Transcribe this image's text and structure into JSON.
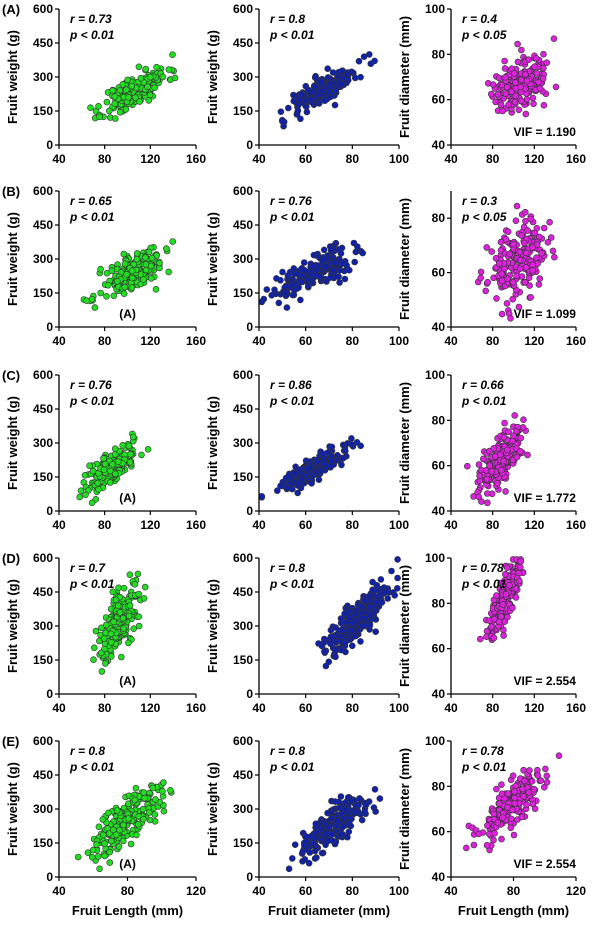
{
  "figure": {
    "row_labels": [
      "(A)",
      "(B)",
      "(C)",
      "(D)",
      "(E)"
    ],
    "bottom_xlabels": [
      "Fruit Length (mm)",
      "Fruit diameter (mm)",
      "Fruit Length (mm)"
    ],
    "colors": {
      "green": "#22dd22",
      "blue": "#1122aa",
      "magenta": "#dd22dd",
      "outline": "#333333"
    }
  },
  "chart_data": [
    {
      "type": "scatter",
      "row": "(A)",
      "col": 0,
      "color": "#22dd22",
      "ylabel": "Fruit weight (g)",
      "xlim": [
        40,
        160
      ],
      "xticks": [
        40,
        80,
        120,
        160
      ],
      "ylim": [
        0,
        600
      ],
      "yticks": [
        0,
        150,
        300,
        450,
        600
      ],
      "r": "r = 0.73",
      "p": "p < 0.01",
      "note": "",
      "cx": 107,
      "cy": 240,
      "sx": 14,
      "sy": 52,
      "rho": 0.73,
      "n": 200,
      "seed": 11
    },
    {
      "type": "scatter",
      "row": "(A)",
      "col": 1,
      "color": "#1122aa",
      "ylabel": "Fruit weight (g)",
      "xlim": [
        40,
        100
      ],
      "xticks": [
        40,
        60,
        80,
        100
      ],
      "ylim": [
        0,
        600
      ],
      "yticks": [
        0,
        150,
        300,
        450,
        600
      ],
      "r": "r = 0.8",
      "p": "p < 0.01",
      "note": "",
      "cx": 68,
      "cy": 245,
      "sx": 7,
      "sy": 52,
      "rho": 0.8,
      "n": 200,
      "seed": 12
    },
    {
      "type": "scatter",
      "row": "(A)",
      "col": 2,
      "color": "#dd22dd",
      "ylabel": "Fruit diameter (mm)",
      "xlim": [
        40,
        160
      ],
      "xticks": [
        40,
        80,
        120,
        160
      ],
      "ylim": [
        40,
        100
      ],
      "yticks": [
        40,
        60,
        80,
        100
      ],
      "r": "r = 0.4",
      "p": "p < 0.05",
      "note": "VIF = 1.190",
      "cx": 108,
      "cy": 67,
      "sx": 14,
      "sy": 6,
      "rho": 0.4,
      "n": 200,
      "seed": 13
    },
    {
      "type": "scatter",
      "row": "(B)",
      "col": 0,
      "color": "#22dd22",
      "ylabel": "Fruit weight (g)",
      "xlim": [
        40,
        160
      ],
      "xticks": [
        40,
        80,
        120,
        160
      ],
      "ylim": [
        0,
        600
      ],
      "yticks": [
        0,
        150,
        300,
        450,
        600
      ],
      "r": "r = 0.65",
      "p": "p < 0.01",
      "note": "(A)",
      "cx": 105,
      "cy": 240,
      "sx": 14,
      "sy": 52,
      "rho": 0.65,
      "n": 200,
      "seed": 21
    },
    {
      "type": "scatter",
      "row": "(B)",
      "col": 1,
      "color": "#1122aa",
      "ylabel": "Fruit weight (g)",
      "xlim": [
        40,
        100
      ],
      "xticks": [
        40,
        60,
        80,
        100
      ],
      "ylim": [
        0,
        600
      ],
      "yticks": [
        0,
        150,
        300,
        450,
        600
      ],
      "r": "r = 0.76",
      "p": "p < 0.01",
      "note": "",
      "cx": 64,
      "cy": 240,
      "sx": 8,
      "sy": 52,
      "rho": 0.76,
      "n": 200,
      "seed": 22
    },
    {
      "type": "scatter",
      "row": "(B)",
      "col": 2,
      "color": "#dd22dd",
      "ylabel": "Fruit diameter (mm)",
      "xlim": [
        40,
        160
      ],
      "xticks": [
        40,
        80,
        120,
        160
      ],
      "ylim": [
        40,
        90
      ],
      "yticks": [
        40,
        60,
        80
      ],
      "r": "r = 0.3",
      "p": "p < 0.05",
      "note": "VIF = 1.099",
      "cx": 104,
      "cy": 64,
      "sx": 14,
      "sy": 7,
      "rho": 0.3,
      "n": 200,
      "seed": 23
    },
    {
      "type": "scatter",
      "row": "(C)",
      "col": 0,
      "color": "#22dd22",
      "ylabel": "Fruit weight (g)",
      "xlim": [
        40,
        160
      ],
      "xticks": [
        40,
        80,
        120,
        160
      ],
      "ylim": [
        0,
        600
      ],
      "yticks": [
        0,
        150,
        300,
        450,
        600
      ],
      "r": "r = 0.76",
      "p": "p < 0.01",
      "note": "(A)",
      "cx": 85,
      "cy": 185,
      "sx": 12,
      "sy": 55,
      "rho": 0.76,
      "n": 200,
      "seed": 31
    },
    {
      "type": "scatter",
      "row": "(C)",
      "col": 1,
      "color": "#1122aa",
      "ylabel": "Fruit weight (g)",
      "xlim": [
        40,
        100
      ],
      "xticks": [
        40,
        60,
        80,
        100
      ],
      "ylim": [
        0,
        600
      ],
      "yticks": [
        0,
        150,
        300,
        450,
        600
      ],
      "r": "r = 0.86",
      "p": "p < 0.01",
      "note": "",
      "cx": 62,
      "cy": 180,
      "sx": 8,
      "sy": 50,
      "rho": 0.86,
      "n": 200,
      "seed": 32
    },
    {
      "type": "scatter",
      "row": "(C)",
      "col": 2,
      "color": "#dd22dd",
      "ylabel": "Fruit diameter (mm)",
      "xlim": [
        40,
        160
      ],
      "xticks": [
        40,
        80,
        120,
        160
      ],
      "ylim": [
        40,
        100
      ],
      "yticks": [
        40,
        60,
        80,
        100
      ],
      "r": "r = 0.66",
      "p": "p < 0.01",
      "note": "VIF = 1.772",
      "cx": 88,
      "cy": 63,
      "sx": 11,
      "sy": 7,
      "rho": 0.66,
      "n": 200,
      "seed": 33
    },
    {
      "type": "scatter",
      "row": "(D)",
      "col": 0,
      "color": "#22dd22",
      "ylabel": "Fruit weight (g)",
      "xlim": [
        40,
        160
      ],
      "xticks": [
        40,
        80,
        120,
        160
      ],
      "ylim": [
        0,
        600
      ],
      "yticks": [
        0,
        150,
        300,
        450,
        600
      ],
      "r": "r = 0.7",
      "p": "p < 0.01",
      "note": "(A)",
      "cx": 92,
      "cy": 320,
      "sx": 9,
      "sy": 85,
      "rho": 0.7,
      "n": 220,
      "seed": 41
    },
    {
      "type": "scatter",
      "row": "(D)",
      "col": 1,
      "color": "#1122aa",
      "ylabel": "Fruit weight (g)",
      "xlim": [
        40,
        100
      ],
      "xticks": [
        40,
        60,
        80,
        100
      ],
      "ylim": [
        0,
        600
      ],
      "yticks": [
        0,
        150,
        300,
        450,
        600
      ],
      "r": "r = 0.8",
      "p": "p < 0.01",
      "note": "",
      "cx": 82,
      "cy": 330,
      "sx": 7,
      "sy": 80,
      "rho": 0.8,
      "n": 220,
      "seed": 42
    },
    {
      "type": "scatter",
      "row": "(D)",
      "col": 2,
      "color": "#dd22dd",
      "ylabel": "Fruit diameter (mm)",
      "xlim": [
        40,
        160
      ],
      "xticks": [
        40,
        80,
        120,
        160
      ],
      "ylim": [
        40,
        100
      ],
      "yticks": [
        40,
        60,
        80,
        100
      ],
      "r": "r = 0.78",
      "p": "p < 0.01",
      "note": "VIF = 2.554",
      "cx": 92,
      "cy": 83,
      "sx": 8,
      "sy": 8,
      "rho": 0.78,
      "n": 220,
      "seed": 43
    },
    {
      "type": "scatter",
      "row": "(E)",
      "col": 0,
      "color": "#22dd22",
      "ylabel": "Fruit weight (g)",
      "xlim": [
        40,
        120
      ],
      "xticks": [
        40,
        80,
        120
      ],
      "ylim": [
        0,
        600
      ],
      "yticks": [
        0,
        150,
        300,
        450,
        600
      ],
      "r": "r = 0.8",
      "p": "p < 0.01",
      "note": "(A)",
      "cx": 79,
      "cy": 245,
      "sx": 11,
      "sy": 85,
      "rho": 0.8,
      "n": 220,
      "seed": 51
    },
    {
      "type": "scatter",
      "row": "(E)",
      "col": 1,
      "color": "#1122aa",
      "ylabel": "Fruit weight (g)",
      "xlim": [
        40,
        100
      ],
      "xticks": [
        40,
        60,
        80,
        100
      ],
      "ylim": [
        0,
        600
      ],
      "yticks": [
        0,
        150,
        300,
        450,
        600
      ],
      "r": "r = 0.8",
      "p": "p < 0.01",
      "note": "",
      "cx": 72,
      "cy": 230,
      "sx": 7,
      "sy": 70,
      "rho": 0.8,
      "n": 220,
      "seed": 52
    },
    {
      "type": "scatter",
      "row": "(E)",
      "col": 2,
      "color": "#dd22dd",
      "ylabel": "Fruit diameter (mm)",
      "xlim": [
        40,
        120
      ],
      "xticks": [
        40,
        80,
        120
      ],
      "ylim": [
        40,
        100
      ],
      "yticks": [
        40,
        60,
        80,
        100
      ],
      "r": "r = 0.78",
      "p": "p < 0.01",
      "note": "VIF = 2.554",
      "cx": 79,
      "cy": 72,
      "sx": 11,
      "sy": 8,
      "rho": 0.78,
      "n": 220,
      "seed": 53
    }
  ]
}
